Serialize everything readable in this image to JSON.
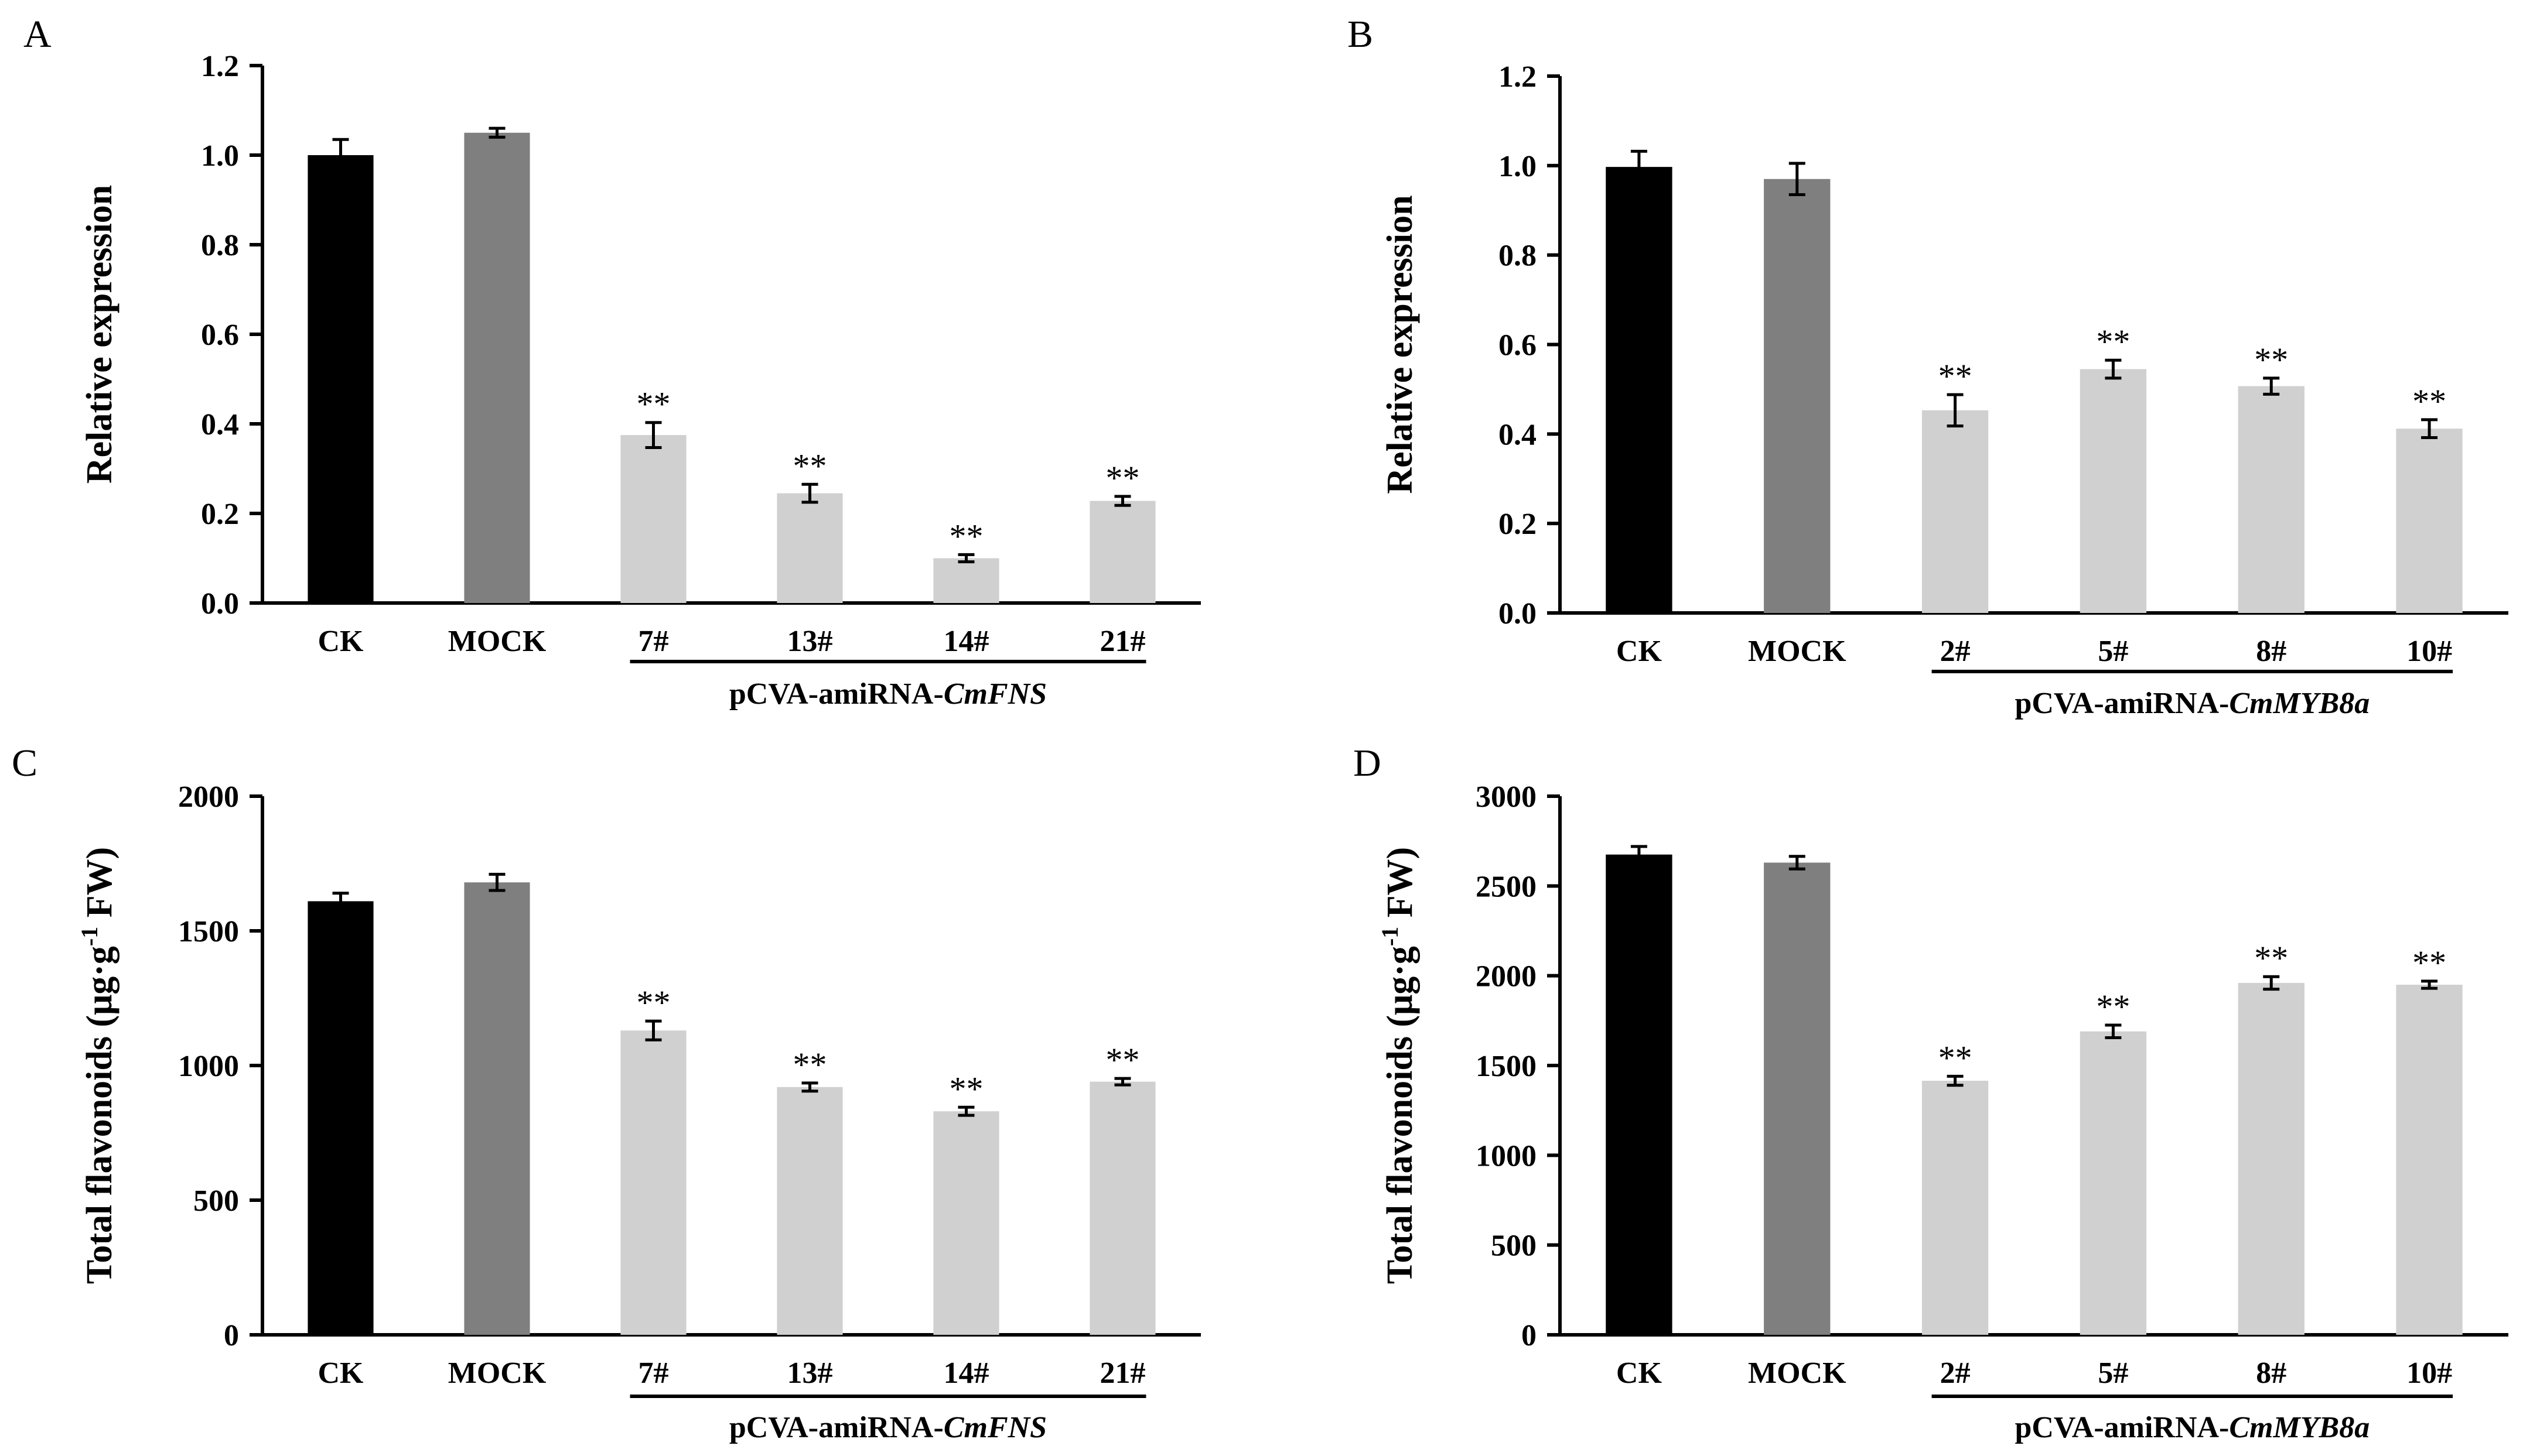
{
  "chart_data": [
    {
      "panel": "A",
      "type": "bar",
      "ylabel": "Relative expression",
      "ylim": [
        0,
        1.2
      ],
      "yticks": [
        "0.0",
        "0.2",
        "0.4",
        "0.6",
        "0.8",
        "1.0",
        "1.2"
      ],
      "categories": [
        "CK",
        "MOCK",
        "7#",
        "13#",
        "14#",
        "21#"
      ],
      "values": [
        1.0,
        1.05,
        0.375,
        0.245,
        0.1,
        0.228
      ],
      "errors": [
        0.035,
        0.01,
        0.028,
        0.02,
        0.008,
        0.01
      ],
      "significance": [
        "",
        "",
        "**",
        "**",
        "**",
        "**"
      ],
      "colors": [
        "#000000",
        "#7f7f7f",
        "#d0d0d0",
        "#d0d0d0",
        "#d0d0d0",
        "#d0d0d0"
      ],
      "group": {
        "prefix": "pCVA-amiRNA-",
        "gene": "CmFNS",
        "from": 2,
        "to": 5
      }
    },
    {
      "panel": "B",
      "type": "bar",
      "ylabel": "Relative expression",
      "ylim": [
        0,
        1.2
      ],
      "yticks": [
        "0.0",
        "0.2",
        "0.4",
        "0.6",
        "0.8",
        "1.0",
        "1.2"
      ],
      "categories": [
        "CK",
        "MOCK",
        "2#",
        "5#",
        "8#",
        "10#"
      ],
      "values": [
        0.997,
        0.97,
        0.453,
        0.545,
        0.507,
        0.412
      ],
      "errors": [
        0.035,
        0.035,
        0.035,
        0.02,
        0.018,
        0.02
      ],
      "significance": [
        "",
        "",
        "**",
        "**",
        "**",
        "**"
      ],
      "colors": [
        "#000000",
        "#7f7f7f",
        "#d0d0d0",
        "#d0d0d0",
        "#d0d0d0",
        "#d0d0d0"
      ],
      "group": {
        "prefix": "pCVA-amiRNA-",
        "gene": "CmMYB8a",
        "from": 2,
        "to": 5
      }
    },
    {
      "panel": "C",
      "type": "bar",
      "ylabel": "Total flavonoids (μg·g-1 FW)",
      "ylabel_main": "Total flavonoids (μg·g",
      "ylabel_sup": "-1",
      "ylabel_end": " FW)",
      "ylim": [
        0,
        2000
      ],
      "yticks": [
        "0",
        "500",
        "1000",
        "1500",
        "2000"
      ],
      "categories": [
        "CK",
        "MOCK",
        "7#",
        "13#",
        "14#",
        "21#"
      ],
      "values": [
        1610,
        1680,
        1130,
        920,
        830,
        940
      ],
      "errors": [
        30,
        30,
        35,
        15,
        15,
        12
      ],
      "significance": [
        "",
        "",
        "**",
        "**",
        "**",
        "**"
      ],
      "colors": [
        "#000000",
        "#7f7f7f",
        "#d0d0d0",
        "#d0d0d0",
        "#d0d0d0",
        "#d0d0d0"
      ],
      "group": {
        "prefix": "pCVA-amiRNA-",
        "gene": "CmFNS",
        "from": 2,
        "to": 5
      }
    },
    {
      "panel": "D",
      "type": "bar",
      "ylabel": "Total flavonoids (μg·g-1 FW)",
      "ylabel_main": "Total flavonoids (μg·g",
      "ylabel_sup": "-1",
      "ylabel_end": " FW)",
      "ylim": [
        0,
        3000
      ],
      "yticks": [
        "0",
        "500",
        "1000",
        "1500",
        "2000",
        "2500",
        "3000"
      ],
      "categories": [
        "CK",
        "MOCK",
        "2#",
        "5#",
        "8#",
        "10#"
      ],
      "values": [
        2675,
        2630,
        1415,
        1690,
        1960,
        1950
      ],
      "errors": [
        45,
        35,
        25,
        35,
        35,
        20
      ],
      "significance": [
        "",
        "",
        "**",
        "**",
        "**",
        "**"
      ],
      "colors": [
        "#000000",
        "#7f7f7f",
        "#d0d0d0",
        "#d0d0d0",
        "#d0d0d0",
        "#d0d0d0"
      ],
      "group": {
        "prefix": "pCVA-amiRNA-",
        "gene": "CmMYB8a",
        "from": 2,
        "to": 5
      }
    }
  ]
}
